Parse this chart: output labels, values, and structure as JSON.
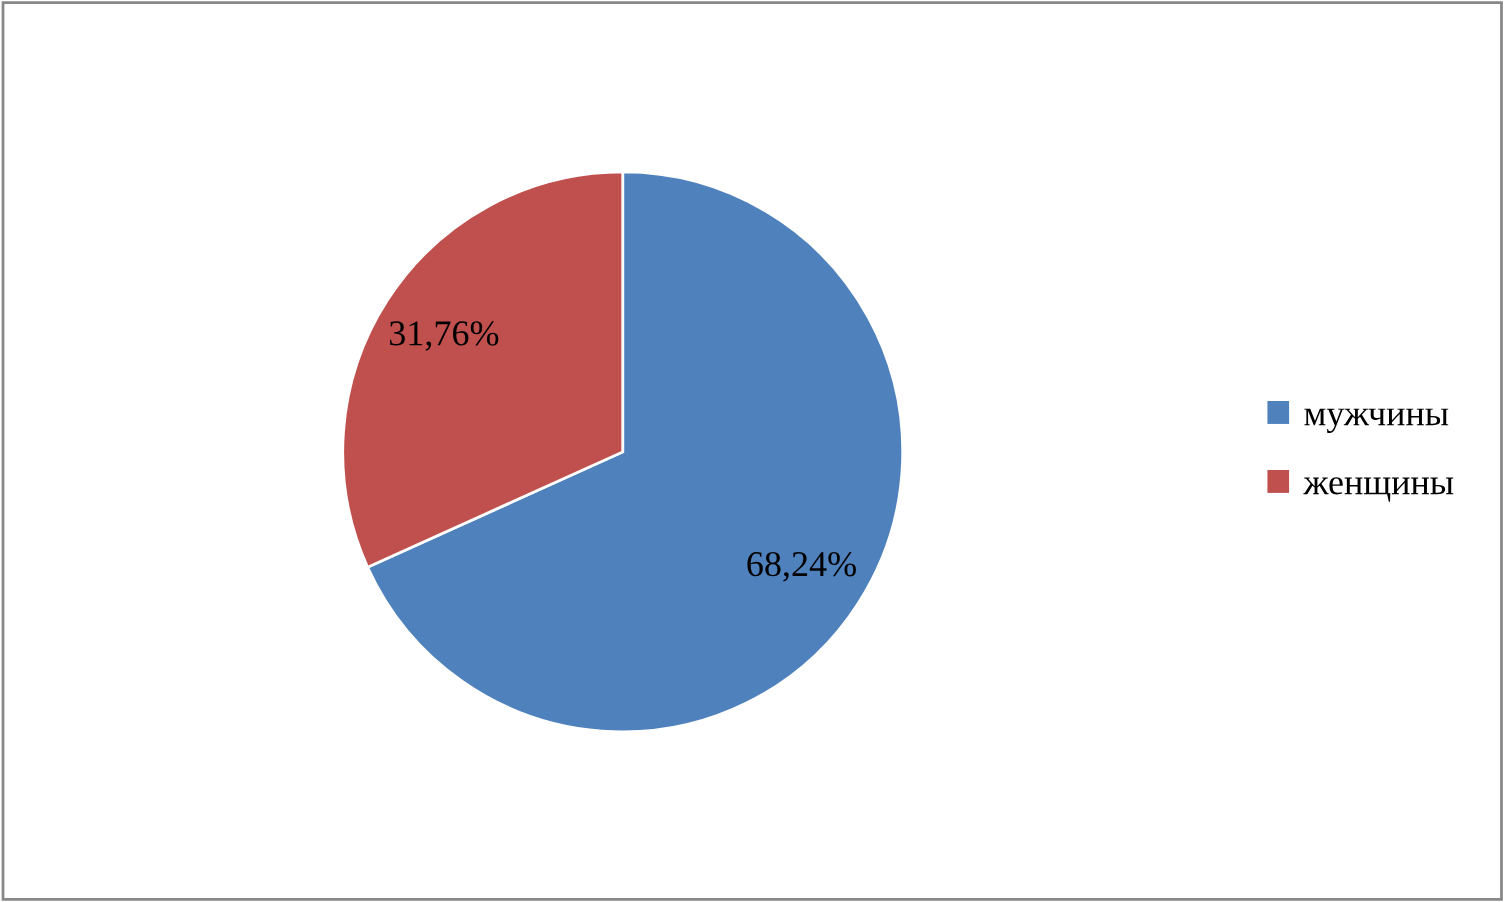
{
  "chart_data": {
    "type": "pie",
    "categories": [
      "мужчины",
      "женщины"
    ],
    "values": [
      68.24,
      31.76
    ],
    "colors": [
      "#4f81bd",
      "#c0504d"
    ],
    "value_labels": [
      "68,24%",
      "31,76%"
    ],
    "legend": "right"
  }
}
